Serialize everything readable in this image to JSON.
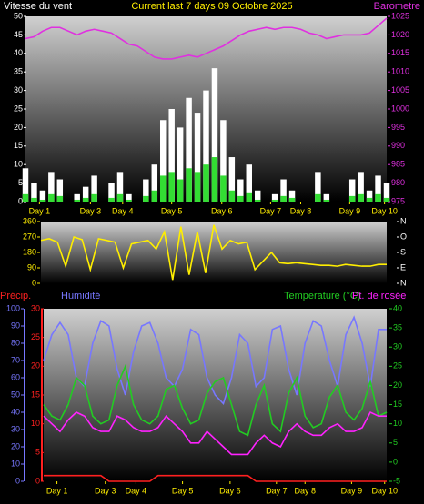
{
  "chart_data": [
    {
      "type": "bar",
      "title": "Current last 7 days 09 Octobre 2025",
      "x": [
        0,
        4,
        8,
        12,
        16,
        20,
        24,
        28,
        32,
        36,
        40,
        44,
        48,
        52,
        56,
        60,
        64,
        68,
        72,
        76,
        80,
        84,
        88,
        92,
        96,
        100,
        104,
        108,
        112,
        116,
        120,
        124,
        128,
        132,
        136,
        140,
        144,
        148,
        152,
        156,
        160,
        164,
        168
      ],
      "xlim": [
        0,
        168
      ],
      "xticks": [
        {
          "value": 6.5,
          "label": "Day 1"
        },
        {
          "value": 30.2,
          "label": "Day 3"
        },
        {
          "value": 45.2,
          "label": "Day 4"
        },
        {
          "value": 68,
          "label": "Day 5"
        },
        {
          "value": 91.3,
          "label": "Day 6"
        },
        {
          "value": 114,
          "label": "Day 7"
        },
        {
          "value": 128,
          "label": "Day 8"
        },
        {
          "value": 150.8,
          "label": "Day 9"
        },
        {
          "value": 167,
          "label": "Day 10"
        }
      ],
      "ylim": [
        0,
        50
      ],
      "yticks": [
        0,
        5,
        10,
        15,
        20,
        25,
        30,
        35,
        40,
        45,
        50
      ],
      "y2lim": [
        975,
        1025
      ],
      "y2ticks": [
        975,
        980,
        985,
        990,
        995,
        1000,
        1005,
        1010,
        1015,
        1020,
        1025
      ],
      "series": [
        {
          "name": "Vitesse du vent",
          "color": "#ffffff",
          "style": "bar",
          "values": [
            9,
            5,
            3,
            8,
            6,
            0,
            2,
            4,
            7,
            0,
            5,
            8,
            2,
            0,
            6,
            10,
            22,
            25,
            20,
            28,
            24,
            30,
            36,
            22,
            12,
            6,
            10,
            3,
            0,
            2,
            6,
            3,
            0,
            0,
            8,
            2,
            0,
            0,
            6,
            8,
            3,
            7,
            5
          ]
        },
        {
          "color": "#33dd33",
          "style": "bar",
          "values": [
            2,
            1,
            0.5,
            2,
            1.5,
            0,
            0.5,
            1,
            2,
            0,
            1,
            2,
            0.5,
            0,
            1.5,
            3,
            7,
            8,
            6,
            9,
            8,
            10,
            12,
            7,
            3,
            1.5,
            2.5,
            0.5,
            0,
            0.5,
            1.5,
            1,
            0,
            0,
            2,
            0.5,
            0,
            0,
            1.5,
            2,
            1,
            2,
            1
          ]
        },
        {
          "name": "Barometre",
          "color": "#e030e0",
          "style": "line",
          "axis": "y2",
          "values": [
            1019,
            1019.5,
            1021,
            1022,
            1022,
            1021,
            1020,
            1021,
            1021.5,
            1021,
            1020.5,
            1019,
            1017.5,
            1017,
            1015.5,
            1014,
            1013.5,
            1013.5,
            1014,
            1014.5,
            1014,
            1015,
            1016,
            1017,
            1018.5,
            1020,
            1021,
            1021.5,
            1022,
            1021.5,
            1022,
            1022,
            1021.5,
            1020.5,
            1020,
            1019,
            1019.5,
            1020,
            1020,
            1020,
            1020.5,
            1022.5,
            1024.5
          ]
        }
      ]
    },
    {
      "type": "line",
      "x": [
        0,
        4,
        8,
        12,
        16,
        20,
        24,
        28,
        32,
        36,
        40,
        44,
        48,
        52,
        56,
        60,
        64,
        68,
        72,
        76,
        80,
        84,
        88,
        92,
        96,
        100,
        104,
        108,
        112,
        116,
        120,
        124,
        128,
        132,
        136,
        140,
        144,
        148,
        152,
        156,
        160,
        164,
        168
      ],
      "xlim": [
        0,
        168
      ],
      "ylim": [
        0,
        360
      ],
      "yticks": [
        0,
        90,
        180,
        270,
        360
      ],
      "y2lim": [
        0,
        360
      ],
      "y2ticks": [
        {
          "value": 0,
          "label": "N"
        },
        {
          "value": 90,
          "label": "E"
        },
        {
          "value": 180,
          "label": "S"
        },
        {
          "value": 270,
          "label": "O"
        },
        {
          "value": 360,
          "label": "N"
        }
      ],
      "series": [
        {
          "color": "#ffee00",
          "style": "line",
          "values": [
            250,
            260,
            240,
            100,
            270,
            255,
            80,
            260,
            250,
            240,
            90,
            230,
            240,
            250,
            200,
            300,
            20,
            330,
            50,
            300,
            60,
            340,
            200,
            250,
            230,
            240,
            80,
            130,
            180,
            120,
            115,
            120,
            115,
            110,
            105,
            105,
            100,
            110,
            105,
            100,
            100,
            110,
            110
          ]
        }
      ]
    },
    {
      "type": "line",
      "x": [
        0,
        4,
        8,
        12,
        16,
        20,
        24,
        28,
        32,
        36,
        40,
        44,
        48,
        52,
        56,
        60,
        64,
        68,
        72,
        76,
        80,
        84,
        88,
        92,
        96,
        100,
        104,
        108,
        112,
        116,
        120,
        124,
        128,
        132,
        136,
        140,
        144,
        148,
        152,
        156,
        160,
        164,
        168
      ],
      "xlim": [
        0,
        168
      ],
      "xticks": [
        {
          "value": 6.5,
          "label": "Day 1"
        },
        {
          "value": 30.2,
          "label": "Day 3"
        },
        {
          "value": 45.2,
          "label": "Day 4"
        },
        {
          "value": 68,
          "label": "Day 5"
        },
        {
          "value": 91.3,
          "label": "Day 6"
        },
        {
          "value": 114,
          "label": "Day 7"
        },
        {
          "value": 128,
          "label": "Day 8"
        },
        {
          "value": 150.8,
          "label": "Day 9"
        },
        {
          "value": 167,
          "label": "Day 10"
        }
      ],
      "ylim": [
        0,
        100
      ],
      "yticks": [
        0,
        10,
        20,
        30,
        40,
        50,
        60,
        70,
        80,
        90,
        100
      ],
      "y2lim": [
        -5,
        40
      ],
      "y2ticks": [
        -5,
        0,
        5,
        10,
        15,
        20,
        25,
        30,
        35,
        40
      ],
      "y3lim": [
        0,
        30
      ],
      "y3ticks": [
        0,
        5,
        10,
        15,
        20,
        25,
        30
      ],
      "series": [
        {
          "name": "Précip.",
          "color": "#ff2020",
          "style": "line",
          "axis": "y3",
          "values": [
            1,
            1,
            1,
            1,
            1,
            1,
            1,
            1,
            0,
            0,
            0,
            0,
            0,
            0,
            1,
            1,
            1,
            1,
            1,
            1,
            1,
            1,
            1,
            1,
            1,
            1,
            0,
            0,
            0,
            0,
            0,
            0,
            0,
            0,
            0,
            0,
            0,
            0,
            0,
            0,
            0,
            0,
            0
          ]
        },
        {
          "name": "Humidité",
          "color": "#7777ff",
          "style": "line",
          "values": [
            70,
            85,
            92,
            85,
            60,
            55,
            80,
            93,
            90,
            65,
            50,
            75,
            90,
            92,
            80,
            60,
            55,
            65,
            88,
            85,
            60,
            50,
            45,
            60,
            85,
            80,
            55,
            60,
            88,
            90,
            65,
            50,
            80,
            93,
            90,
            70,
            55,
            85,
            95,
            80,
            55,
            88,
            88
          ]
        },
        {
          "name": "Temperature (°C)",
          "color": "#22cc22",
          "style": "line",
          "axis": "y2",
          "values": [
            15,
            12,
            11,
            15,
            22,
            20,
            12,
            10,
            11,
            20,
            25,
            15,
            11,
            10,
            12,
            19,
            20,
            14,
            10,
            11,
            18,
            21,
            22,
            15,
            8,
            7,
            15,
            20,
            10,
            8,
            18,
            22,
            12,
            9,
            10,
            17,
            20,
            13,
            11,
            14,
            21,
            12,
            13
          ]
        },
        {
          "name": "Pt. de rosée",
          "color": "#ff22ff",
          "style": "line",
          "axis": "y2",
          "values": [
            12,
            10,
            8,
            11,
            13,
            12,
            9,
            8,
            8,
            12,
            11,
            9,
            8,
            8,
            9,
            12,
            10,
            8,
            5,
            5,
            8,
            6,
            4,
            2,
            2,
            2,
            5,
            7,
            5,
            4,
            8,
            10,
            8,
            7,
            7,
            9,
            10,
            8,
            8,
            9,
            13,
            12,
            12
          ]
        }
      ]
    }
  ]
}
